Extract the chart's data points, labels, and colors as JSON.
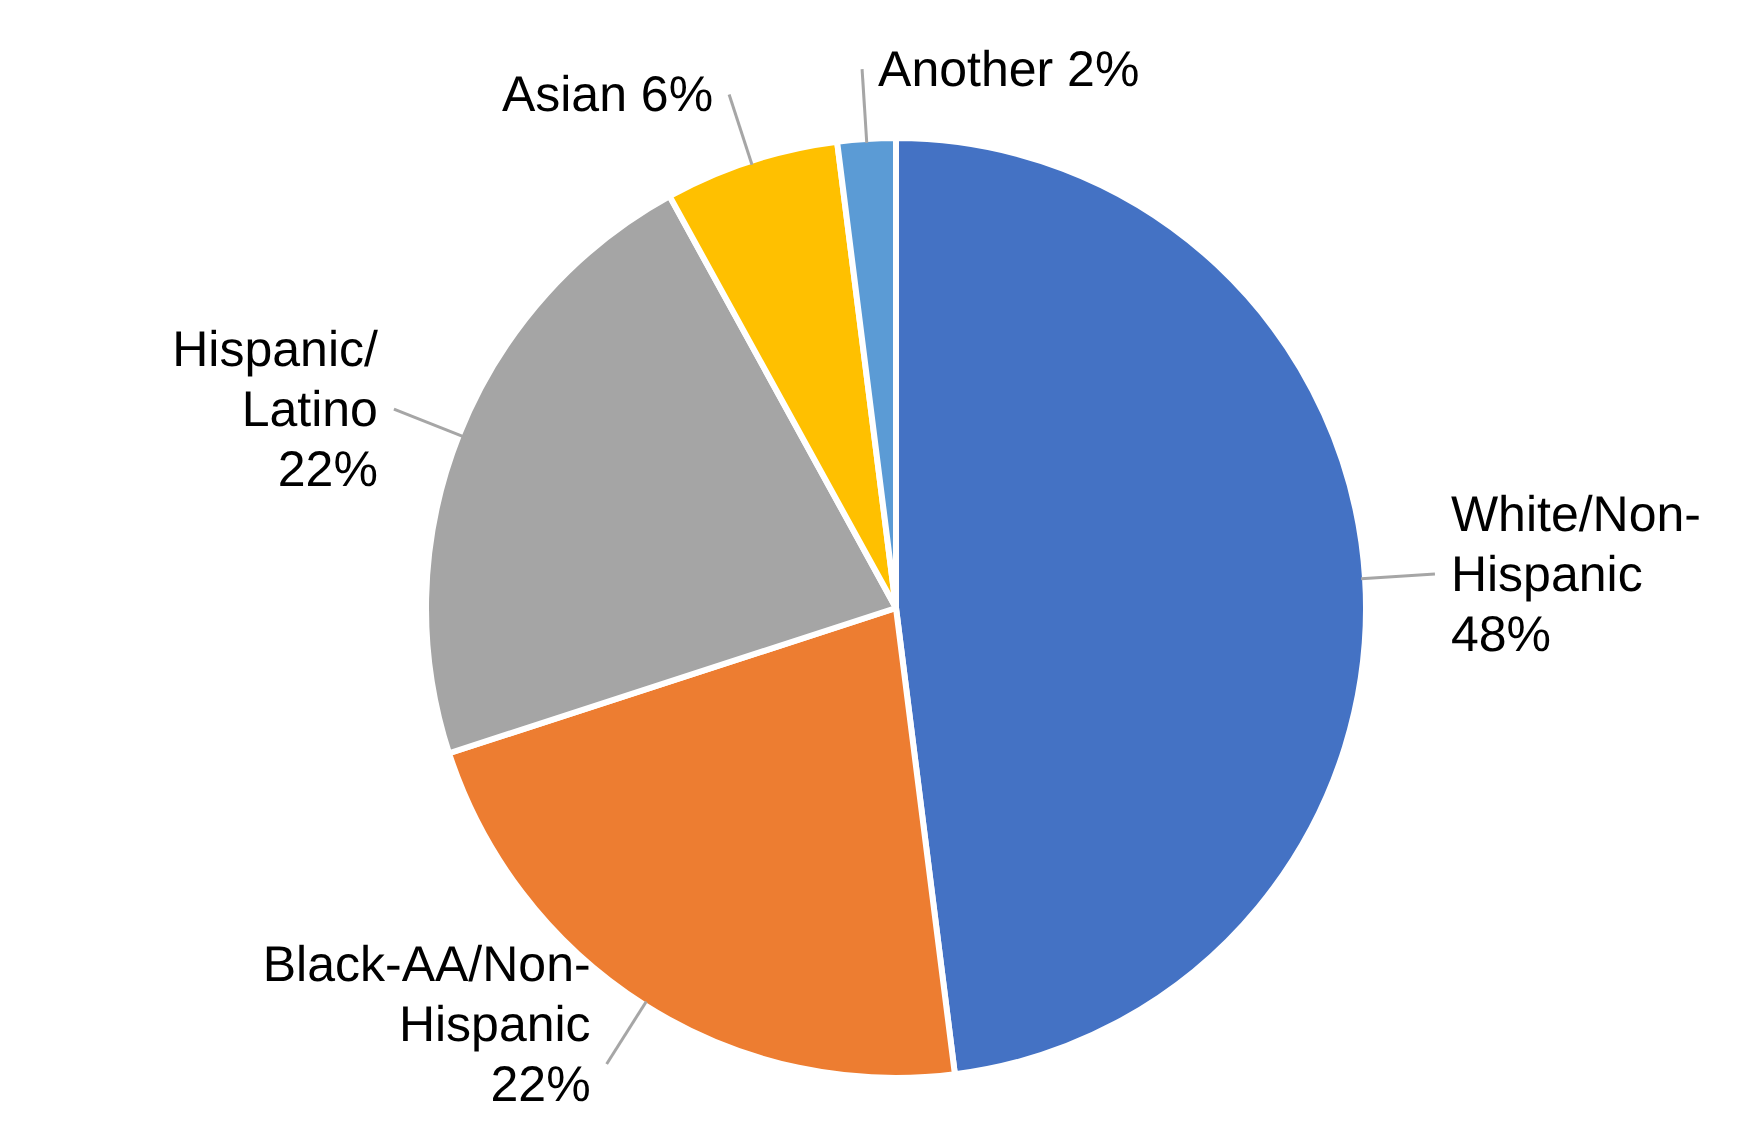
{
  "chart_data": {
    "type": "pie",
    "categories": [
      "White/Non-Hispanic",
      "Black-AA/Non-Hispanic",
      "Hispanic/Latino",
      "Asian",
      "Another"
    ],
    "values": [
      48,
      22,
      22,
      6,
      2
    ],
    "value_labels": [
      "48%",
      "22%",
      "22%",
      "6%",
      "2%"
    ],
    "colors": [
      "#4472c4",
      "#ed7d31",
      "#a5a5a5",
      "#ffc000",
      "#5b9bd5"
    ]
  }
}
